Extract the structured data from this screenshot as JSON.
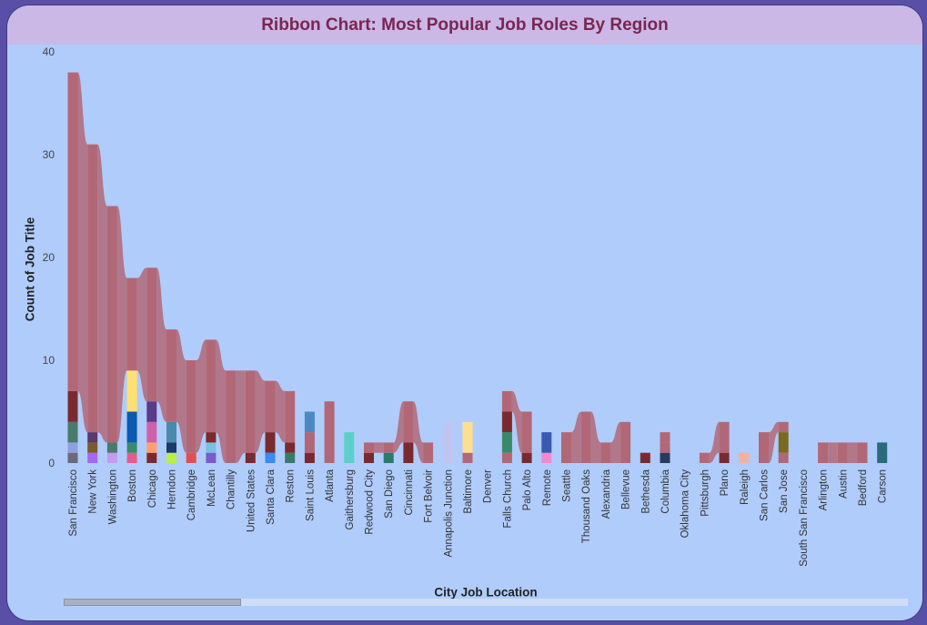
{
  "title": "Ribbon Chart: Most Popular Job Roles By Region",
  "chart_data": {
    "type": "ribbon",
    "title": "Ribbon Chart: Most Popular Job Roles By Region",
    "xlabel": "City Job Location",
    "ylabel": "Count of Job Title",
    "ylim": [
      0,
      40
    ],
    "yticks": [
      0,
      10,
      20,
      30,
      40
    ],
    "grid": false,
    "legend": "none",
    "ribbon_color": "#b26777",
    "categories": [
      "San Francisco",
      "New York",
      "Washington",
      "Boston",
      "Chicago",
      "Herndon",
      "Cambridge",
      "McLean",
      "Chantilly",
      "United States",
      "Santa Clara",
      "Reston",
      "Saint Louis",
      "Atlanta",
      "Gaithersburg",
      "Redwood City",
      "San Diego",
      "Cincinnati",
      "Fort Belvoir",
      "Annapolis Junction",
      "Baltimore",
      "Denver",
      "Falls Church",
      "Palo Alto",
      "Remote",
      "Seattle",
      "Thousand Oaks",
      "Alexandria",
      "Bellevue",
      "Bethesda",
      "Columbia",
      "Oklahoma City",
      "Pittsburgh",
      "Plano",
      "Raleigh",
      "San Carlos",
      "San Jose",
      "South San Francisco",
      "Arlington",
      "Austin",
      "Bedford",
      "Carson"
    ],
    "top_series_values": [
      31,
      28,
      23,
      9,
      13,
      9,
      9,
      9,
      9,
      8,
      5,
      5,
      0,
      6,
      0,
      1,
      1,
      4,
      2,
      0,
      0,
      0,
      2,
      4,
      0,
      3,
      5,
      2,
      4,
      0,
      1,
      0,
      1,
      3,
      0,
      3,
      1,
      0,
      2,
      2,
      2,
      0
    ],
    "stacked_segments": [
      [
        {
          "value": 1,
          "color": "#6a6a7a"
        },
        {
          "value": 1,
          "color": "#8fa0e0"
        },
        {
          "value": 2,
          "color": "#4a7a6a"
        },
        {
          "value": 3,
          "color": "#7a2a2e"
        }
      ],
      [
        {
          "value": 1,
          "color": "#a565f5"
        },
        {
          "value": 1,
          "color": "#7a5a30"
        },
        {
          "value": 1,
          "color": "#5a3a6a"
        }
      ],
      [
        {
          "value": 1,
          "color": "#c59af0"
        },
        {
          "value": 1,
          "color": "#4a7a6a"
        }
      ],
      [
        {
          "value": 1,
          "color": "#e85a8a"
        },
        {
          "value": 1,
          "color": "#3a8a6a"
        },
        {
          "value": 3,
          "color": "#0a5ab0"
        },
        {
          "value": 4,
          "color": "#ffe070"
        }
      ],
      [
        {
          "value": 1,
          "color": "#7a2a2e"
        },
        {
          "value": 1,
          "color": "#ffa06a"
        },
        {
          "value": 2,
          "color": "#d060a8"
        },
        {
          "value": 2,
          "color": "#5a3a8a"
        }
      ],
      [
        {
          "value": 1,
          "color": "#b8f040"
        },
        {
          "value": 1,
          "color": "#1a3a6a"
        },
        {
          "value": 2,
          "color": "#4a8aaa"
        }
      ],
      [
        {
          "value": 1,
          "color": "#e05050"
        }
      ],
      [
        {
          "value": 1,
          "color": "#7a5acc"
        },
        {
          "value": 1,
          "color": "#7ac0e0"
        },
        {
          "value": 1,
          "color": "#7a2a2e"
        }
      ],
      [],
      [
        {
          "value": 1,
          "color": "#7a2a2e"
        }
      ],
      [
        {
          "value": 1,
          "color": "#3a8af0"
        },
        {
          "value": 2,
          "color": "#7a2a2e"
        }
      ],
      [
        {
          "value": 1,
          "color": "#3a7a6a"
        },
        {
          "value": 1,
          "color": "#7a2a2e"
        }
      ],
      [
        {
          "value": 1,
          "color": "#7a2a2e"
        },
        {
          "value": 2,
          "color": "#b26777"
        },
        {
          "value": 2,
          "color": "#4a8ac0"
        }
      ],
      [],
      [
        {
          "value": 3,
          "color": "#5ad0c8"
        }
      ],
      [
        {
          "value": 1,
          "color": "#7a2a2e"
        }
      ],
      [
        {
          "value": 1,
          "color": "#2a7a6a"
        }
      ],
      [
        {
          "value": 2,
          "color": "#7a2a2e"
        }
      ],
      [],
      [
        {
          "value": 4,
          "color": "#c0c4f0"
        }
      ],
      [
        {
          "value": 1,
          "color": "#b26777"
        },
        {
          "value": 3,
          "color": "#ffe090"
        }
      ],
      [],
      [
        {
          "value": 1,
          "color": "#b26777"
        },
        {
          "value": 2,
          "color": "#3a8a6a"
        },
        {
          "value": 2,
          "color": "#7a2a2e"
        }
      ],
      [
        {
          "value": 1,
          "color": "#7a2a2e"
        }
      ],
      [
        {
          "value": 1,
          "color": "#f08ad0"
        },
        {
          "value": 2,
          "color": "#3a5ab0"
        }
      ],
      [],
      [],
      [],
      [],
      [
        {
          "value": 1,
          "color": "#7a2a2e"
        }
      ],
      [
        {
          "value": 1,
          "color": "#2a3a5a"
        },
        {
          "value": 1,
          "color": "#b26777"
        }
      ],
      [],
      [],
      [
        {
          "value": 1,
          "color": "#7a2a2e"
        }
      ],
      [
        {
          "value": 1,
          "color": "#f4b0a0"
        }
      ],
      [],
      [
        {
          "value": 1,
          "color": "#b26777"
        },
        {
          "value": 2,
          "color": "#7a6a20"
        }
      ],
      [],
      [],
      [],
      [],
      [
        {
          "value": 2,
          "color": "#2a6a7a"
        }
      ]
    ]
  },
  "scrollbar": {
    "position": 0,
    "visible_fraction": 0.21
  }
}
